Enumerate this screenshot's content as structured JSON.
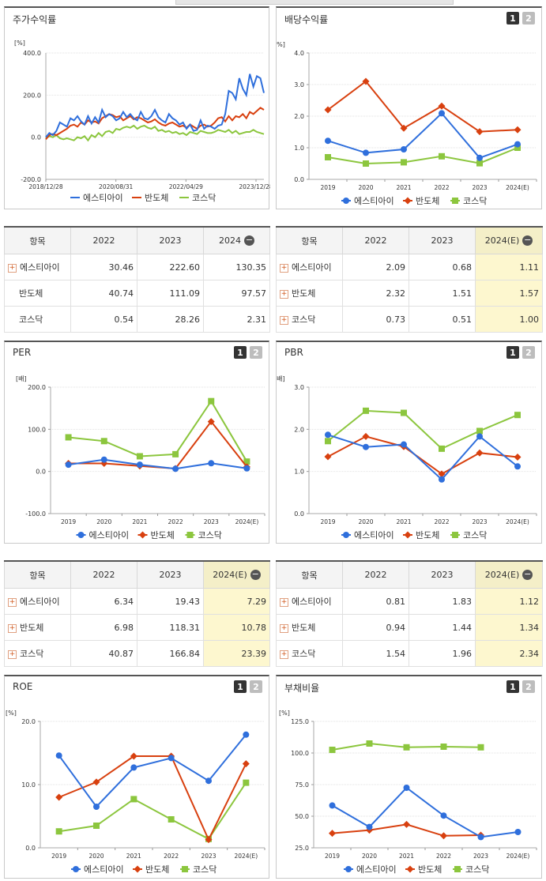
{
  "colors": {
    "blue": "#2f6fdc",
    "red": "#d8400f",
    "green": "#8cc63e"
  },
  "legend": [
    "에스티아이",
    "반도체",
    "코스닥"
  ],
  "icons": {
    "expand": "plus-box-icon",
    "collapse": "minus-circle-icon",
    "page1": "page-1",
    "page2": "page-2"
  },
  "pager": {
    "one": "1",
    "two": "2"
  },
  "tables": {
    "price": {
      "headers": [
        "항목",
        "2022",
        "2023",
        "2024"
      ],
      "rows": [
        {
          "name": "에스티아이",
          "values": [
            "30.46",
            "222.60",
            "130.35"
          ]
        },
        {
          "name": "반도체",
          "values": [
            "40.74",
            "111.09",
            "97.57"
          ]
        },
        {
          "name": "코스닥",
          "values": [
            "0.54",
            "28.26",
            "2.31"
          ]
        }
      ]
    },
    "dividend": {
      "headers": [
        "항목",
        "2022",
        "2023",
        "2024(E)"
      ],
      "rows": [
        {
          "name": "에스티아이",
          "values": [
            "2.09",
            "0.68",
            "1.11"
          ]
        },
        {
          "name": "반도체",
          "values": [
            "2.32",
            "1.51",
            "1.57"
          ]
        },
        {
          "name": "코스닥",
          "values": [
            "0.73",
            "0.51",
            "1.00"
          ]
        }
      ]
    },
    "per": {
      "headers": [
        "항목",
        "2022",
        "2023",
        "2024(E)"
      ],
      "rows": [
        {
          "name": "에스티아이",
          "values": [
            "6.34",
            "19.43",
            "7.29"
          ]
        },
        {
          "name": "반도체",
          "values": [
            "6.98",
            "118.31",
            "10.78"
          ]
        },
        {
          "name": "코스닥",
          "values": [
            "40.87",
            "166.84",
            "23.39"
          ]
        }
      ]
    },
    "pbr": {
      "headers": [
        "항목",
        "2022",
        "2023",
        "2024(E)"
      ],
      "rows": [
        {
          "name": "에스티아이",
          "values": [
            "0.81",
            "1.83",
            "1.12"
          ]
        },
        {
          "name": "반도체",
          "values": [
            "0.94",
            "1.44",
            "1.34"
          ]
        },
        {
          "name": "코스닥",
          "values": [
            "1.54",
            "1.96",
            "2.34"
          ]
        }
      ]
    }
  },
  "chart_data": [
    {
      "id": "price",
      "title": "주가수익률",
      "type": "line",
      "unit": "[%]",
      "ylim": [
        -200,
        400
      ],
      "yticks": [
        "400.0",
        "200.0",
        "0.0",
        "-200.0"
      ],
      "xticks": [
        "2018/12/28",
        "2020/08/31",
        "2022/04/29",
        "2023/12/28"
      ],
      "x": [
        0,
        1,
        2,
        3,
        4,
        5,
        6,
        7,
        8,
        9,
        10,
        11,
        12,
        13,
        14,
        15,
        16,
        17,
        18,
        19,
        20,
        21,
        22,
        23,
        24,
        25,
        26,
        27,
        28,
        29,
        30,
        31,
        32,
        33,
        34,
        35,
        36,
        37,
        38,
        39,
        40,
        41,
        42,
        43,
        44,
        45,
        46,
        47,
        48,
        49,
        50,
        51,
        52,
        53,
        54,
        55,
        56,
        57,
        58,
        59,
        60,
        61,
        62
      ],
      "series": [
        {
          "name": "에스티아이",
          "color": "blue",
          "values": [
            0,
            20,
            10,
            30,
            70,
            60,
            50,
            90,
            80,
            100,
            75,
            60,
            100,
            65,
            95,
            70,
            130,
            95,
            110,
            100,
            80,
            90,
            120,
            95,
            110,
            90,
            80,
            120,
            90,
            85,
            100,
            130,
            95,
            80,
            70,
            110,
            90,
            80,
            60,
            70,
            40,
            60,
            30,
            35,
            80,
            40,
            55,
            50,
            40,
            55,
            60,
            110,
            220,
            210,
            180,
            280,
            230,
            200,
            300,
            240,
            290,
            280,
            210
          ]
        },
        {
          "name": "반도체",
          "color": "red",
          "values": [
            -10,
            10,
            15,
            10,
            20,
            30,
            40,
            55,
            60,
            50,
            70,
            60,
            80,
            70,
            75,
            65,
            90,
            100,
            110,
            105,
            95,
            100,
            80,
            90,
            100,
            85,
            95,
            90,
            80,
            70,
            75,
            85,
            70,
            60,
            55,
            65,
            70,
            60,
            50,
            55,
            45,
            60,
            50,
            40,
            55,
            60,
            50,
            55,
            70,
            90,
            95,
            75,
            100,
            80,
            100,
            95,
            110,
            90,
            120,
            110,
            125,
            140,
            130
          ]
        },
        {
          "name": "코스닥",
          "color": "green",
          "values": [
            -5,
            5,
            0,
            10,
            -5,
            -10,
            -5,
            -10,
            -15,
            0,
            -5,
            5,
            -15,
            10,
            0,
            20,
            5,
            25,
            30,
            20,
            40,
            35,
            45,
            50,
            45,
            55,
            40,
            50,
            55,
            45,
            40,
            50,
            30,
            35,
            25,
            30,
            20,
            25,
            15,
            20,
            10,
            25,
            20,
            15,
            30,
            25,
            20,
            20,
            25,
            35,
            30,
            25,
            35,
            20,
            30,
            15,
            20,
            25,
            25,
            35,
            25,
            20,
            15
          ]
        }
      ]
    },
    {
      "id": "dividend",
      "title": "배당수익률",
      "type": "line",
      "unit": "[%]",
      "ylim": [
        0,
        4
      ],
      "yticks": [
        "4.0",
        "3.0",
        "2.0",
        "1.0",
        "0.0"
      ],
      "categories": [
        "2019",
        "2020",
        "2021",
        "2022",
        "2023",
        "2024(E)"
      ],
      "series": [
        {
          "name": "에스티아이",
          "color": "blue",
          "values": [
            1.22,
            0.84,
            0.95,
            2.09,
            0.68,
            1.11
          ]
        },
        {
          "name": "반도체",
          "color": "red",
          "values": [
            2.2,
            3.1,
            1.62,
            2.32,
            1.51,
            1.57
          ]
        },
        {
          "name": "코스닥",
          "color": "green",
          "values": [
            0.7,
            0.5,
            0.54,
            0.73,
            0.51,
            1.0
          ]
        }
      ]
    },
    {
      "id": "per",
      "title": "PER",
      "type": "line",
      "unit": "[배]",
      "ylim": [
        -100,
        200
      ],
      "yticks": [
        "200.0",
        "100.0",
        "0.0",
        "-100.0"
      ],
      "categories": [
        "2019",
        "2020",
        "2021",
        "2022",
        "2023",
        "2024(E)"
      ],
      "series": [
        {
          "name": "에스티아이",
          "color": "blue",
          "values": [
            16,
            28,
            16,
            6.34,
            19.43,
            7.29
          ]
        },
        {
          "name": "반도체",
          "color": "red",
          "values": [
            19,
            19,
            13,
            6.98,
            118.31,
            10.78
          ]
        },
        {
          "name": "코스닥",
          "color": "green",
          "values": [
            81,
            72,
            36,
            40.87,
            166.84,
            23.39
          ]
        }
      ]
    },
    {
      "id": "pbr",
      "title": "PBR",
      "type": "line",
      "unit": "[배]",
      "ylim": [
        0,
        3
      ],
      "yticks": [
        "3.0",
        "2.0",
        "1.0",
        "0.0"
      ],
      "categories": [
        "2019",
        "2020",
        "2021",
        "2022",
        "2023",
        "2024(E)"
      ],
      "series": [
        {
          "name": "에스티아이",
          "color": "blue",
          "values": [
            1.87,
            1.58,
            1.64,
            0.81,
            1.83,
            1.12
          ]
        },
        {
          "name": "반도체",
          "color": "red",
          "values": [
            1.35,
            1.83,
            1.59,
            0.94,
            1.44,
            1.34
          ]
        },
        {
          "name": "코스닥",
          "color": "green",
          "values": [
            1.72,
            2.44,
            2.39,
            1.54,
            1.96,
            2.34
          ]
        }
      ]
    },
    {
      "id": "roe",
      "title": "ROE",
      "type": "line",
      "unit": "[%]",
      "ylim": [
        0,
        20
      ],
      "yticks": [
        "20.0",
        "10.0",
        "0.0"
      ],
      "categories": [
        "2019",
        "2020",
        "2021",
        "2022",
        "2023",
        "2024(E)"
      ],
      "series": [
        {
          "name": "에스티아이",
          "color": "blue",
          "values": [
            14.6,
            6.5,
            12.7,
            14.2,
            10.6,
            17.9
          ]
        },
        {
          "name": "반도체",
          "color": "red",
          "values": [
            8.0,
            10.4,
            14.5,
            14.5,
            1.3,
            13.3
          ]
        },
        {
          "name": "코스닥",
          "color": "green",
          "values": [
            2.6,
            3.5,
            7.7,
            4.5,
            1.4,
            10.3
          ]
        }
      ]
    },
    {
      "id": "debt",
      "title": "부채비율",
      "type": "line",
      "unit": "[%]",
      "ylim": [
        25,
        125
      ],
      "yticks": [
        "125.0",
        "100.0",
        "75.0",
        "50.0",
        "25.0"
      ],
      "categories": [
        "2019",
        "2020",
        "2021",
        "2022",
        "2023",
        "2024(E)"
      ],
      "series": [
        {
          "name": "에스티아이",
          "color": "blue",
          "values": [
            58.5,
            41.5,
            72.5,
            50.5,
            33.5,
            37.5
          ]
        },
        {
          "name": "반도체",
          "color": "red",
          "values": [
            36.5,
            39,
            43.5,
            34.5,
            35,
            null
          ]
        },
        {
          "name": "코스닥",
          "color": "green",
          "values": [
            102.5,
            107.5,
            104.5,
            105,
            104.5,
            null
          ]
        }
      ]
    }
  ]
}
